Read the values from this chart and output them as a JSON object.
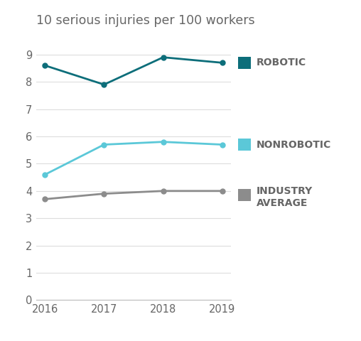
{
  "title": "10 serious injuries per 100 workers",
  "years": [
    2016,
    2017,
    2018,
    2019
  ],
  "robotic": [
    8.6,
    7.9,
    8.9,
    8.7
  ],
  "nonrobotic": [
    4.6,
    5.7,
    5.8,
    5.7
  ],
  "industry_avg": [
    3.7,
    3.9,
    4.0,
    4.0
  ],
  "robotic_color": "#0d6e7a",
  "nonrobotic_color": "#5bc8d8",
  "industry_color": "#8c8c8c",
  "ylim": [
    0,
    9.5
  ],
  "yticks": [
    0,
    1,
    2,
    3,
    4,
    5,
    6,
    7,
    8,
    9
  ],
  "title_fontsize": 12.5,
  "legend_fontsize": 10,
  "tick_fontsize": 10.5,
  "background_color": "#ffffff",
  "grid_color": "#dddddd",
  "text_color": "#666666"
}
